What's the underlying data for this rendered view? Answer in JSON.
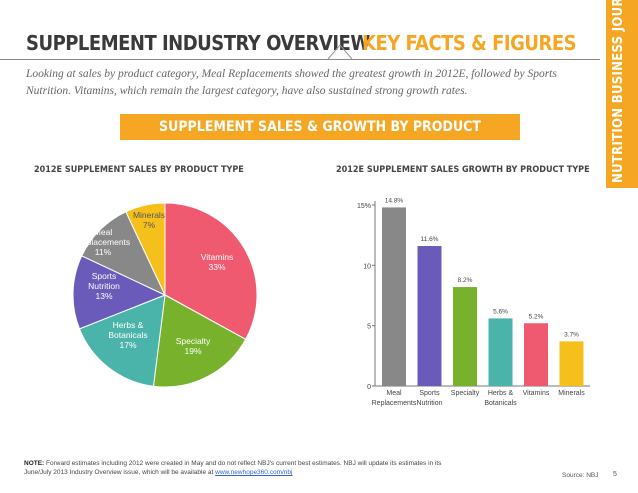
{
  "header": {
    "title": "SUPPLEMENT INDUSTRY OVERVIEW",
    "title_accent": "KEY FACTS & FIGURES",
    "brand": "NUTRITION BUSINESS JOURNAL"
  },
  "intro": "Looking at sales by product category, Meal Replacements showed the greatest growth in 2012E, followed by Sports Nutrition. Vitamins, which remain the largest category, have also sustained strong growth rates.",
  "banner": "SUPPLEMENT SALES & GROWTH BY PRODUCT",
  "colors": {
    "accent": "#f5a623",
    "vitamins": "#f05a70",
    "specialty": "#78b22d",
    "herbs": "#4bb4aa",
    "sports": "#6a5bba",
    "meal": "#888888",
    "minerals": "#f6c01c"
  },
  "chart_data": [
    {
      "type": "pie",
      "title": "2012E SUPPLEMENT SALES BY PRODUCT TYPE",
      "slices": [
        {
          "label": "Vitamins",
          "value": 33,
          "display": "33%",
          "color": "#f05a70"
        },
        {
          "label": "Specialty",
          "value": 19,
          "display": "19%",
          "color": "#78b22d"
        },
        {
          "label": "Herbs & Botanicals",
          "value": 17,
          "display": "17%",
          "color": "#4bb4aa"
        },
        {
          "label": "Sports Nutrition",
          "value": 13,
          "display": "13%",
          "color": "#6a5bba"
        },
        {
          "label": "Meal Replacements",
          "value": 11,
          "display": "11%",
          "color": "#888888"
        },
        {
          "label": "Minerals",
          "value": 7,
          "display": "7%",
          "color": "#f6c01c"
        }
      ]
    },
    {
      "type": "bar",
      "title": "2012E SUPPLEMENT SALES GROWTH BY PRODUCT TYPE",
      "categories": [
        [
          "Meal",
          "Replacements"
        ],
        [
          "Sports",
          "Nutrition"
        ],
        [
          "Specialty"
        ],
        [
          "Herbs &",
          "Botanicals"
        ],
        [
          "Vitamins"
        ],
        [
          "Minerals"
        ]
      ],
      "values": [
        14.8,
        11.6,
        8.2,
        5.6,
        5.2,
        3.7
      ],
      "data_labels": [
        "14.8%",
        "11.6%",
        "8.2%",
        "5.6%",
        "5.2%",
        "3.7%"
      ],
      "colors": [
        "#888888",
        "#6a5bba",
        "#78b22d",
        "#4bb4aa",
        "#f05a70",
        "#f6c01c"
      ],
      "yticks": [
        0,
        5,
        10,
        15
      ],
      "ytick_labels": [
        "0",
        "5",
        "10",
        "15%"
      ],
      "ylim": [
        0,
        15
      ],
      "grid": false
    }
  ],
  "footer": {
    "note_label": "NOTE:",
    "note_text": "Forward estimates including 2012 were created in May and do not reflect NBJ's current best estimates. NBJ will update its estimates in its June/July 2013 Industry Overview issue, which will be available at",
    "note_link": "www.newhope360.com/nbj",
    "source": "Source: NBJ",
    "page": "5"
  }
}
